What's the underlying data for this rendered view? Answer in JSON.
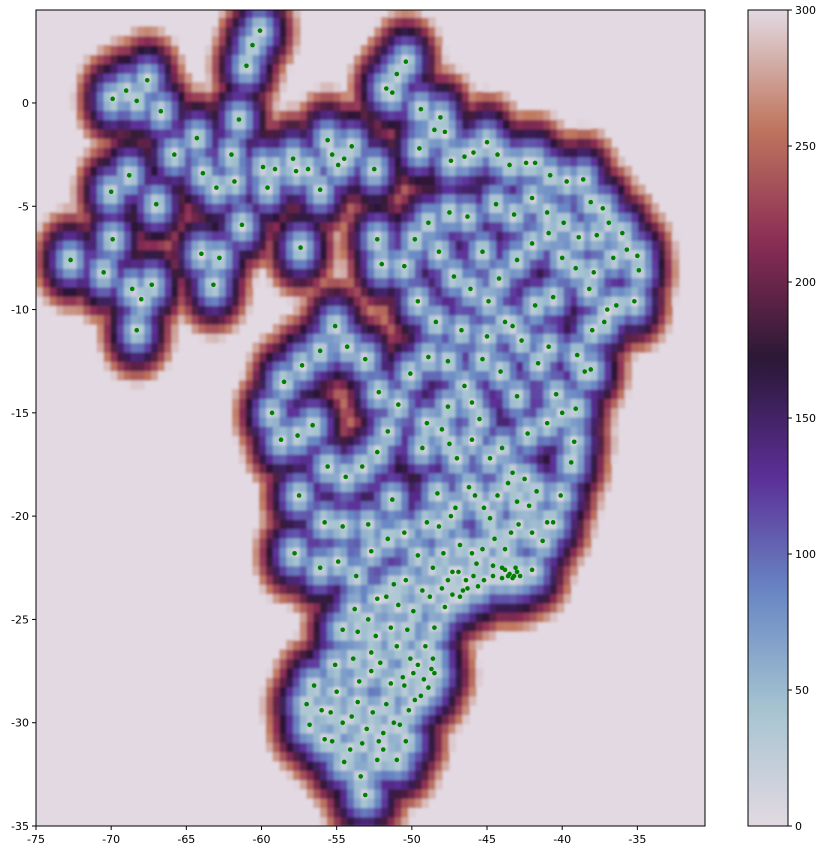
{
  "chart_data": {
    "type": "heatmap",
    "title": "",
    "xlabel": "",
    "ylabel": "",
    "xlim": [
      -75,
      -30.5
    ],
    "ylim": [
      -35,
      4.5
    ],
    "x_ticks": [
      -75,
      -70,
      -65,
      -60,
      -55,
      -50,
      -45,
      -40,
      -35
    ],
    "y_ticks": [
      0,
      -5,
      -10,
      -15,
      -20,
      -25,
      -30,
      -35
    ],
    "grid": false,
    "colormap": "twilight",
    "colorbar": {
      "vmin": 0,
      "vmax": 300,
      "ticks": [
        0,
        50,
        100,
        150,
        200,
        250,
        300
      ],
      "colors": [
        "#e2d9e2",
        "#a6c4d1",
        "#6887c4",
        "#5c2e97",
        "#2a1835",
        "#8a2c55",
        "#c0775e",
        "#e2d9e2"
      ]
    },
    "points_color": "#008000",
    "points": [
      [
        -72.7,
        -7.6
      ],
      [
        -70.5,
        -8.2
      ],
      [
        -69.9,
        0.2
      ],
      [
        -69.0,
        0.6
      ],
      [
        -68.3,
        0.1
      ],
      [
        -67.6,
        1.1
      ],
      [
        -70.0,
        -4.3
      ],
      [
        -69.9,
        -6.6
      ],
      [
        -68.8,
        -3.5
      ],
      [
        -68.6,
        -9.0
      ],
      [
        -68.0,
        -9.5
      ],
      [
        -67.3,
        -8.8
      ],
      [
        -68.3,
        -11.0
      ],
      [
        -67.0,
        -4.9
      ],
      [
        -66.7,
        -0.4
      ],
      [
        -65.8,
        -2.5
      ],
      [
        -64.3,
        -1.7
      ],
      [
        -63.9,
        -3.4
      ],
      [
        -64.0,
        -7.3
      ],
      [
        -63.2,
        -8.8
      ],
      [
        -62.8,
        -7.5
      ],
      [
        -63.0,
        -4.1
      ],
      [
        -62.0,
        -2.5
      ],
      [
        -61.8,
        -3.8
      ],
      [
        -61.5,
        -0.8
      ],
      [
        -61.3,
        -5.9
      ],
      [
        -61.0,
        1.8
      ],
      [
        -60.6,
        2.8
      ],
      [
        -60.1,
        3.5
      ],
      [
        -59.9,
        -3.1
      ],
      [
        -59.6,
        -4.1
      ],
      [
        -59.1,
        -3.2
      ],
      [
        -57.9,
        -2.7
      ],
      [
        -57.7,
        -3.3
      ],
      [
        -57.4,
        -7.0
      ],
      [
        -56.9,
        -3.2
      ],
      [
        -56.1,
        -4.2
      ],
      [
        -55.6,
        -1.8
      ],
      [
        -55.3,
        -2.5
      ],
      [
        -54.9,
        -3.0
      ],
      [
        -54.5,
        -2.7
      ],
      [
        -54.0,
        -2.1
      ],
      [
        -52.5,
        -3.2
      ],
      [
        -52.3,
        -6.6
      ],
      [
        -52.0,
        -7.8
      ],
      [
        -51.7,
        0.7
      ],
      [
        -51.3,
        0.5
      ],
      [
        -51.0,
        1.4
      ],
      [
        -50.4,
        2.0
      ],
      [
        -49.4,
        -0.3
      ],
      [
        -48.5,
        -1.3
      ],
      [
        -48.1,
        -0.7
      ],
      [
        -47.8,
        -1.4
      ],
      [
        -49.5,
        -2.2
      ],
      [
        -47.4,
        -2.8
      ],
      [
        -46.5,
        -2.6
      ],
      [
        -45.9,
        -2.4
      ],
      [
        -45.0,
        -1.9
      ],
      [
        -44.3,
        -2.5
      ],
      [
        -43.5,
        -3.0
      ],
      [
        -42.4,
        -2.9
      ],
      [
        -41.8,
        -2.9
      ],
      [
        -40.8,
        -3.5
      ],
      [
        -39.7,
        -3.8
      ],
      [
        -38.6,
        -3.7
      ],
      [
        -38.1,
        -4.8
      ],
      [
        -37.3,
        -5.1
      ],
      [
        -36.9,
        -5.8
      ],
      [
        -36.0,
        -6.3
      ],
      [
        -35.7,
        -7.1
      ],
      [
        -35.0,
        -7.4
      ],
      [
        -34.9,
        -8.1
      ],
      [
        -35.2,
        -9.6
      ],
      [
        -36.4,
        -9.8
      ],
      [
        -37.2,
        -10.6
      ],
      [
        -38.1,
        -12.9
      ],
      [
        -38.5,
        -13.0
      ],
      [
        -39.1,
        -14.8
      ],
      [
        -39.4,
        -17.4
      ],
      [
        -40.1,
        -19.0
      ],
      [
        -40.6,
        -20.3
      ],
      [
        -41.3,
        -21.2
      ],
      [
        -42.0,
        -22.6
      ],
      [
        -43.2,
        -22.9
      ],
      [
        -43.5,
        -22.8
      ],
      [
        -43.3,
        -23.0
      ],
      [
        -43.0,
        -22.7
      ],
      [
        -44.0,
        -22.5
      ],
      [
        -44.6,
        -22.9
      ],
      [
        -45.2,
        -23.1
      ],
      [
        -45.6,
        -23.4
      ],
      [
        -46.3,
        -23.5
      ],
      [
        -46.6,
        -23.6
      ],
      [
        -46.8,
        -23.9
      ],
      [
        -47.3,
        -23.8
      ],
      [
        -47.8,
        -24.4
      ],
      [
        -48.5,
        -25.4
      ],
      [
        -48.6,
        -26.9
      ],
      [
        -48.5,
        -27.6
      ],
      [
        -48.9,
        -28.3
      ],
      [
        -49.4,
        -28.7
      ],
      [
        -50.2,
        -29.4
      ],
      [
        -50.8,
        -30.1
      ],
      [
        -51.2,
        -30.0
      ],
      [
        -51.9,
        -31.3
      ],
      [
        -52.3,
        -31.8
      ],
      [
        -53.1,
        -33.5
      ],
      [
        -53.4,
        -32.6
      ],
      [
        -54.1,
        -31.3
      ],
      [
        -55.3,
        -30.9
      ],
      [
        -56.0,
        -29.4
      ],
      [
        -57.0,
        -29.1
      ],
      [
        -56.5,
        -28.2
      ],
      [
        -55.0,
        -28.5
      ],
      [
        -54.0,
        -29.7
      ],
      [
        -53.5,
        -28.0
      ],
      [
        -52.7,
        -27.5
      ],
      [
        -52.1,
        -27.1
      ],
      [
        -51.4,
        -28.1
      ],
      [
        -50.6,
        -27.8
      ],
      [
        -50.1,
        -26.9
      ],
      [
        -49.6,
        -27.2
      ],
      [
        -49.1,
        -26.3
      ],
      [
        -50.3,
        -25.5
      ],
      [
        -51.4,
        -25.4
      ],
      [
        -52.4,
        -25.8
      ],
      [
        -53.6,
        -25.6
      ],
      [
        -54.6,
        -25.5
      ],
      [
        -53.8,
        -24.5
      ],
      [
        -52.3,
        -24.0
      ],
      [
        -51.2,
        -23.3
      ],
      [
        -50.4,
        -23.1
      ],
      [
        -49.3,
        -23.6
      ],
      [
        -48.6,
        -22.5
      ],
      [
        -47.9,
        -21.8
      ],
      [
        -47.3,
        -22.7
      ],
      [
        -48.2,
        -20.5
      ],
      [
        -47.4,
        -20.0
      ],
      [
        -46.8,
        -21.4
      ],
      [
        -46.0,
        -21.8
      ],
      [
        -45.3,
        -21.6
      ],
      [
        -44.5,
        -21.1
      ],
      [
        -43.8,
        -21.6
      ],
      [
        -43.4,
        -20.8
      ],
      [
        -42.9,
        -20.4
      ],
      [
        -42.2,
        -19.5
      ],
      [
        -41.7,
        -18.8
      ],
      [
        -42.5,
        -18.2
      ],
      [
        -43.6,
        -18.4
      ],
      [
        -44.3,
        -19.0
      ],
      [
        -45.2,
        -19.6
      ],
      [
        -46.2,
        -18.6
      ],
      [
        -47.0,
        -17.2
      ],
      [
        -48.3,
        -18.9
      ],
      [
        -49.3,
        -16.7
      ],
      [
        -49.0,
        -15.5
      ],
      [
        -48.0,
        -15.8
      ],
      [
        -47.6,
        -14.7
      ],
      [
        -46.5,
        -13.7
      ],
      [
        -45.3,
        -12.4
      ],
      [
        -44.1,
        -13.0
      ],
      [
        -43.0,
        -14.2
      ],
      [
        -42.3,
        -16.0
      ],
      [
        -41.0,
        -15.5
      ],
      [
        -40.4,
        -14.1
      ],
      [
        -41.6,
        -12.6
      ],
      [
        -42.7,
        -11.5
      ],
      [
        -43.8,
        -10.6
      ],
      [
        -44.9,
        -9.6
      ],
      [
        -46.1,
        -9.0
      ],
      [
        -47.2,
        -8.4
      ],
      [
        -48.2,
        -7.2
      ],
      [
        -48.9,
        -5.8
      ],
      [
        -49.8,
        -6.6
      ],
      [
        -50.5,
        -7.9
      ],
      [
        -49.6,
        -9.6
      ],
      [
        -48.4,
        -10.6
      ],
      [
        -48.9,
        -12.3
      ],
      [
        -50.1,
        -13.1
      ],
      [
        -50.9,
        -14.6
      ],
      [
        -51.6,
        -15.9
      ],
      [
        -52.3,
        -16.9
      ],
      [
        -53.3,
        -17.6
      ],
      [
        -54.4,
        -18.1
      ],
      [
        -55.6,
        -17.6
      ],
      [
        -56.6,
        -15.6
      ],
      [
        -57.6,
        -16.1
      ],
      [
        -58.7,
        -16.3
      ],
      [
        -59.3,
        -15.0
      ],
      [
        -58.5,
        -13.5
      ],
      [
        -57.3,
        -12.7
      ],
      [
        -56.1,
        -12.0
      ],
      [
        -55.1,
        -10.8
      ],
      [
        -54.3,
        -11.8
      ],
      [
        -53.1,
        -12.4
      ],
      [
        -52.2,
        -14.0
      ],
      [
        -51.3,
        -19.2
      ],
      [
        -52.9,
        -20.4
      ],
      [
        -54.6,
        -20.5
      ],
      [
        -55.8,
        -20.3
      ],
      [
        -57.5,
        -19.0
      ],
      [
        -57.8,
        -21.8
      ],
      [
        -56.1,
        -22.5
      ],
      [
        -54.9,
        -22.2
      ],
      [
        -53.7,
        -22.9
      ],
      [
        -52.7,
        -21.7
      ],
      [
        -51.6,
        -21.1
      ],
      [
        -50.5,
        -20.8
      ],
      [
        -49.6,
        -21.9
      ],
      [
        -49.0,
        -20.3
      ],
      [
        -47.5,
        -16.5
      ],
      [
        -46.0,
        -16.3
      ],
      [
        -45.5,
        -15.3
      ],
      [
        -44.0,
        -16.7
      ],
      [
        -43.3,
        -17.9
      ],
      [
        -41.0,
        -20.3
      ],
      [
        -40.0,
        -15.0
      ],
      [
        -39.2,
        -16.4
      ],
      [
        -40.9,
        -11.8
      ],
      [
        -39.0,
        -12.2
      ],
      [
        -38.0,
        -11.0
      ],
      [
        -37.0,
        -10.0
      ],
      [
        -38.2,
        -9.0
      ],
      [
        -39.1,
        -8.0
      ],
      [
        -40.0,
        -7.5
      ],
      [
        -40.9,
        -6.3
      ],
      [
        -42.0,
        -6.8
      ],
      [
        -43.0,
        -7.6
      ],
      [
        -44.2,
        -8.5
      ],
      [
        -45.3,
        -7.2
      ],
      [
        -46.3,
        -5.5
      ],
      [
        -47.5,
        -5.3
      ],
      [
        -44.4,
        -4.9
      ],
      [
        -43.2,
        -5.4
      ],
      [
        -42.0,
        -4.6
      ],
      [
        -41.0,
        -5.3
      ],
      [
        -39.9,
        -5.8
      ],
      [
        -38.9,
        -6.5
      ],
      [
        -37.7,
        -6.4
      ],
      [
        -36.6,
        -7.5
      ],
      [
        -37.9,
        -8.2
      ],
      [
        -40.6,
        -9.4
      ],
      [
        -41.8,
        -9.8
      ],
      [
        -43.3,
        -10.8
      ],
      [
        -45.0,
        -11.3
      ],
      [
        -46.7,
        -11.0
      ],
      [
        -47.6,
        -12.5
      ],
      [
        -46.0,
        -14.5
      ],
      [
        -44.8,
        -17.2
      ],
      [
        -45.8,
        -19.0
      ],
      [
        -47.1,
        -19.6
      ],
      [
        -44.8,
        -20.1
      ],
      [
        -43.0,
        -19.3
      ],
      [
        -42.0,
        -20.8
      ],
      [
        -44.0,
        -23.0
      ],
      [
        -43.8,
        -22.6
      ],
      [
        -43.6,
        -22.9
      ],
      [
        -43.1,
        -22.5
      ],
      [
        -42.8,
        -22.9
      ],
      [
        -45.9,
        -22.9
      ],
      [
        -46.9,
        -22.7
      ],
      [
        -47.6,
        -23.1
      ],
      [
        -48.0,
        -23.5
      ],
      [
        -46.4,
        -23.1
      ],
      [
        -45.7,
        -22.3
      ],
      [
        -44.6,
        -22.4
      ],
      [
        -48.8,
        -23.9
      ],
      [
        -49.9,
        -24.6
      ],
      [
        -50.9,
        -24.3
      ],
      [
        -51.7,
        -23.9
      ],
      [
        -52.9,
        -25.0
      ],
      [
        -51.0,
        -26.3
      ],
      [
        -52.7,
        -26.6
      ],
      [
        -53.9,
        -26.9
      ],
      [
        -55.1,
        -27.2
      ],
      [
        -51.7,
        -29.1
      ],
      [
        -52.6,
        -29.5
      ],
      [
        -53.6,
        -29.0
      ],
      [
        -53.0,
        -30.3
      ],
      [
        -51.9,
        -30.5
      ],
      [
        -54.6,
        -30.0
      ],
      [
        -55.8,
        -30.8
      ],
      [
        -56.8,
        -30.1
      ],
      [
        -50.4,
        -30.9
      ],
      [
        -51.0,
        -31.8
      ],
      [
        -52.2,
        -30.9
      ],
      [
        -53.3,
        -31.0
      ],
      [
        -54.5,
        -31.9
      ],
      [
        -55.4,
        -29.5
      ],
      [
        -49.8,
        -28.9
      ],
      [
        -50.5,
        -28.2
      ],
      [
        -49.2,
        -27.9
      ],
      [
        -48.7,
        -27.4
      ],
      [
        -49.9,
        -27.6
      ]
    ]
  }
}
